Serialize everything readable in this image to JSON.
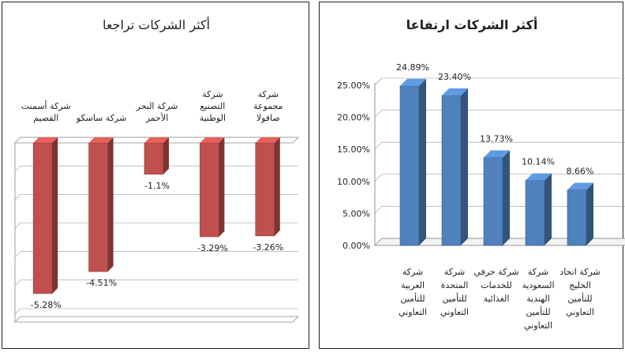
{
  "chart_data": [
    {
      "type": "bar",
      "title": "أكثر الشركات تراجعا",
      "categories": [
        "شركة أسمنت القصيم",
        "شركة ساسكو",
        "شركة البحر الأحمر",
        "شركة التصنيع الوطنية",
        "شركة مجموعة صافولا"
      ],
      "values": [
        -5.28,
        -4.51,
        -1.1,
        -3.29,
        -3.26
      ],
      "value_labels": [
        "-5.28%",
        "-4.51%",
        "-1.1%",
        "-3.29%",
        "-3.26%"
      ],
      "ylim": [
        -6,
        0
      ],
      "grid": true,
      "bar_color": "#c0504d"
    },
    {
      "type": "bar",
      "title": "أكثر الشركات ارتفاعا",
      "categories": [
        "شركة العربية للتأمين التعاوني",
        "شركة المتحدة للتأمين التعاوني",
        "شركة حرفي للخدمات الغذائية",
        "شركة السعودية الهندية للتأمين التعاوني",
        "شركة اتحاد الخليج للتأمين التعاوني"
      ],
      "values": [
        24.89,
        23.4,
        13.73,
        10.14,
        8.66
      ],
      "value_labels": [
        "24.89%",
        "23.40%",
        "13.73%",
        "10.14%",
        "8.66%"
      ],
      "ylim": [
        0,
        25
      ],
      "yticks": [
        "0.00%",
        "5.00%",
        "10.00%",
        "15.00%",
        "20.00%",
        "25.00%"
      ],
      "grid": true,
      "bar_color": "#4f81bd"
    }
  ]
}
